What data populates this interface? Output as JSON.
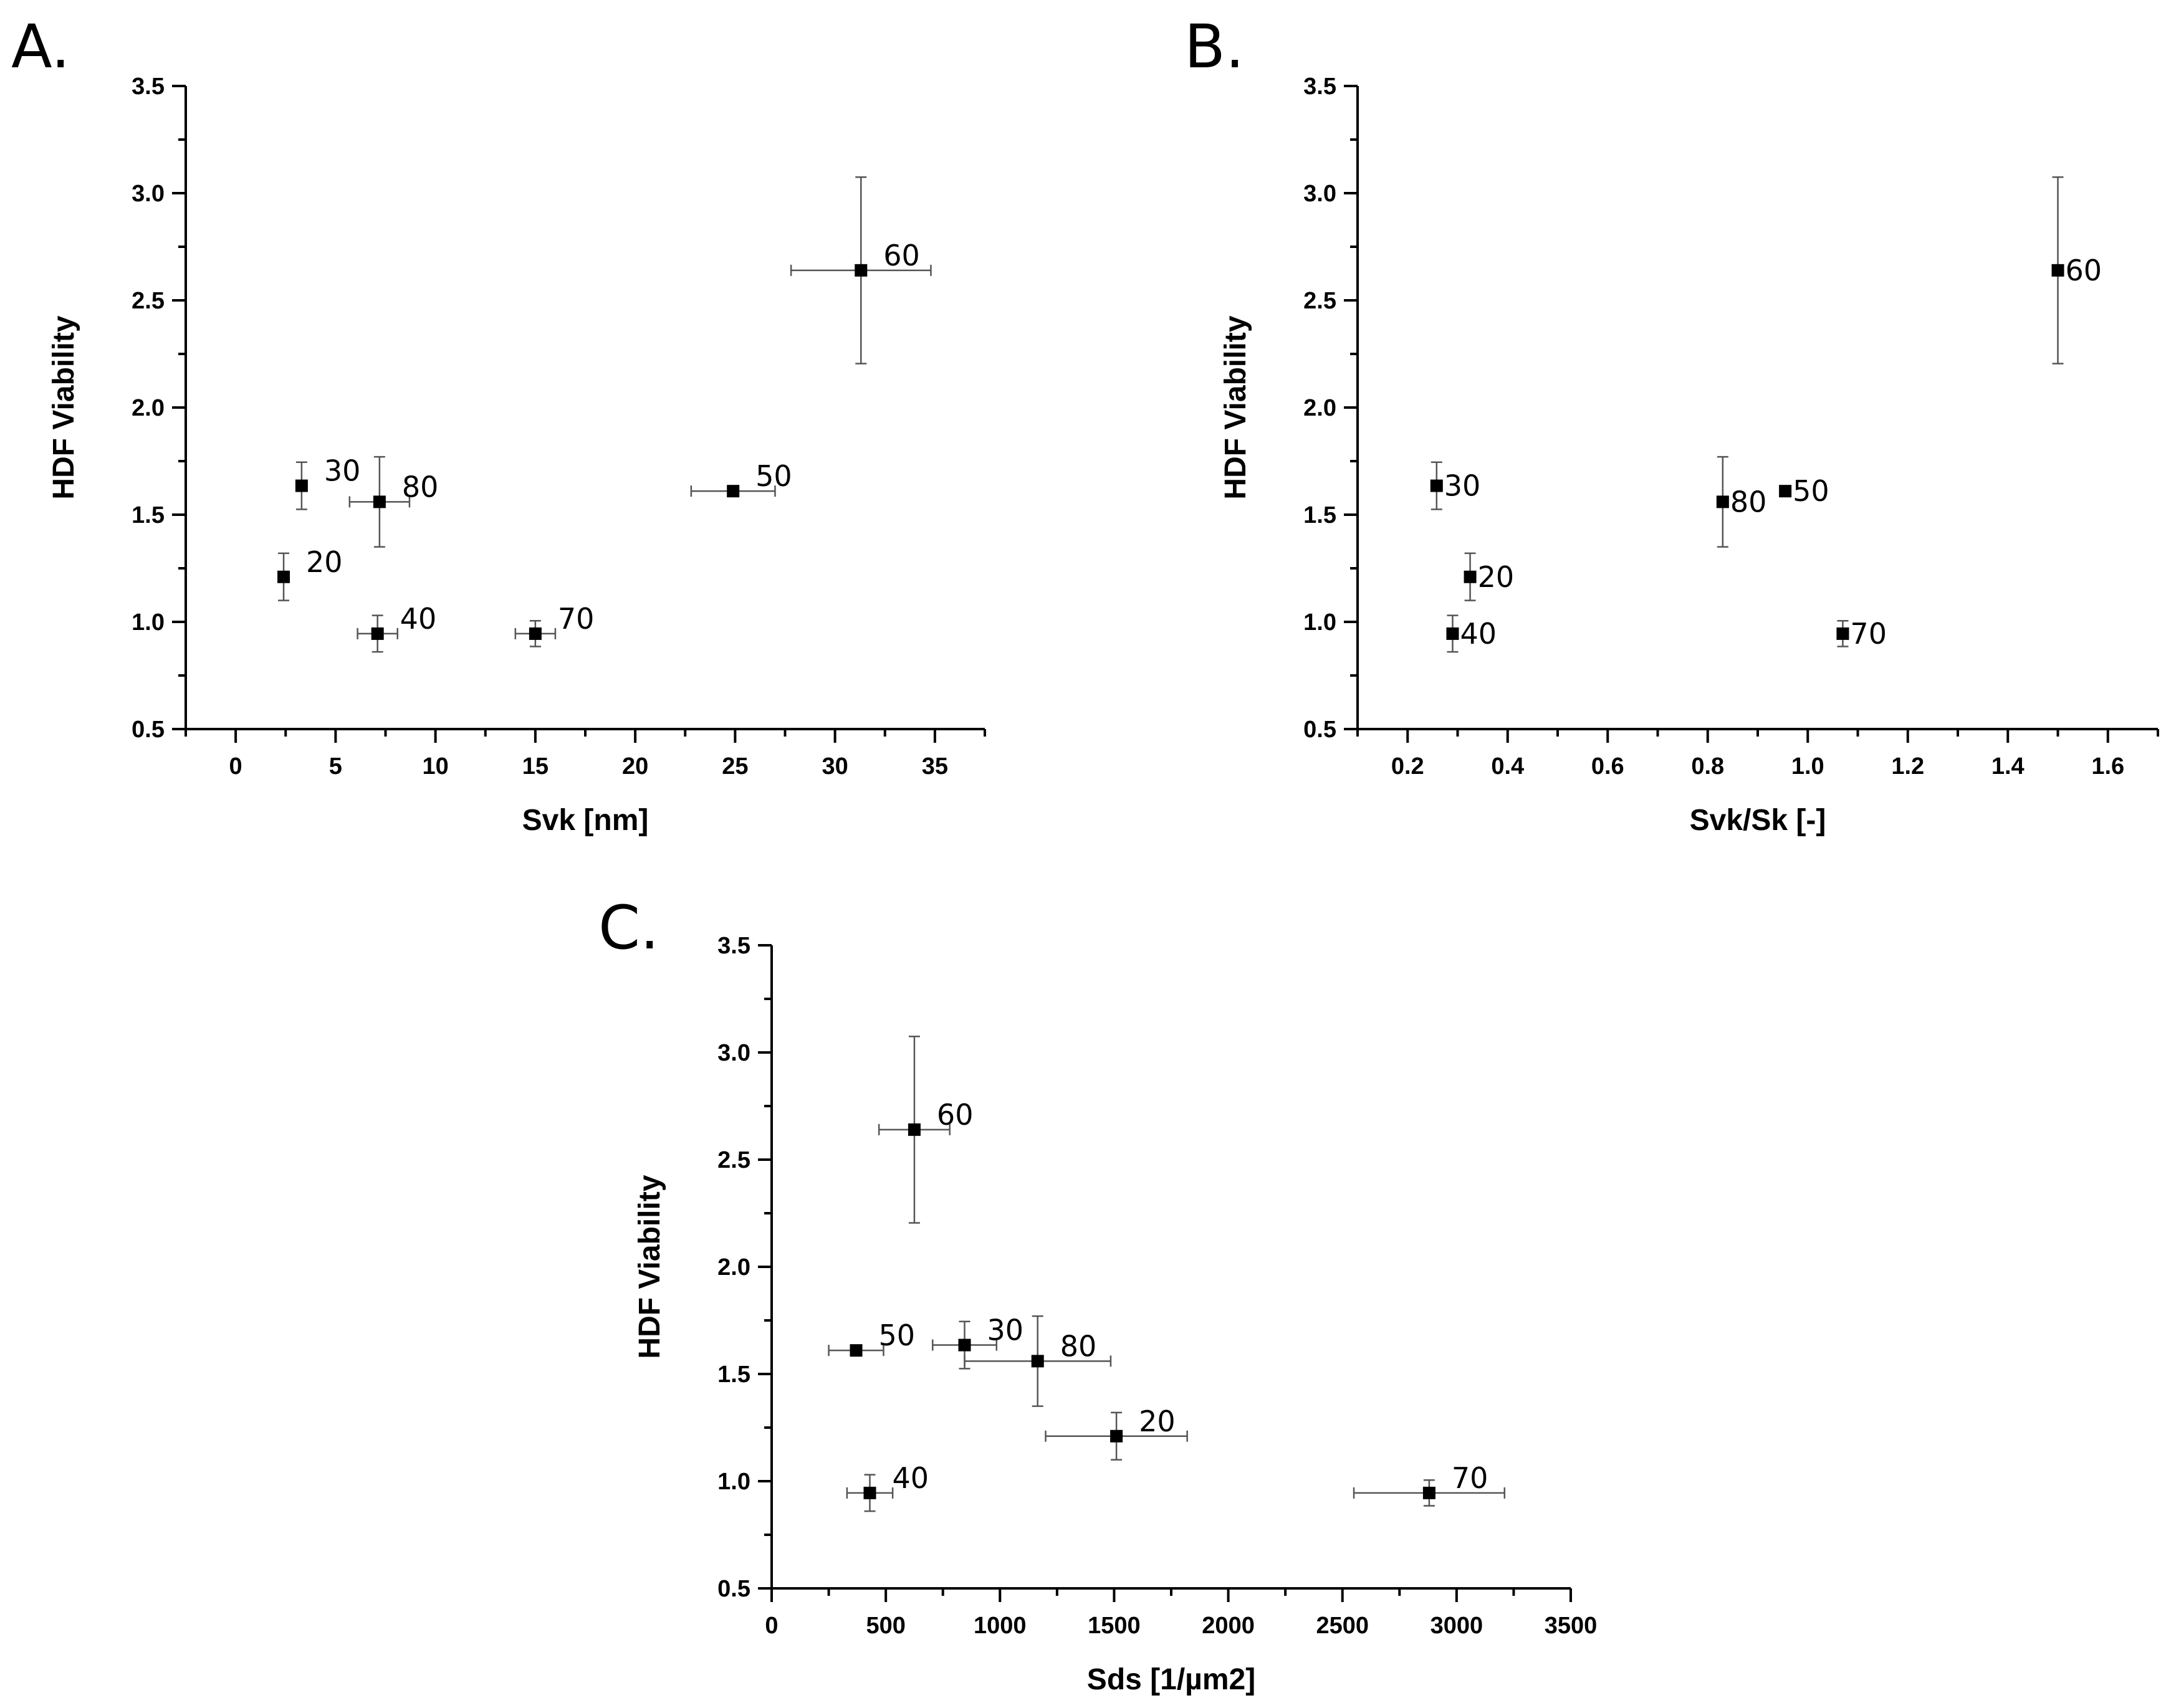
{
  "chart_data": [
    {
      "panel": "A.",
      "type": "scatter",
      "xlabel": "Svk [nm]",
      "ylabel": "HDF Viability",
      "xlim": [
        -2.5,
        37.5
      ],
      "ylim": [
        0.5,
        3.5
      ],
      "x_ticks": [
        0,
        5,
        10,
        15,
        20,
        25,
        30,
        35
      ],
      "x_tick_labels": [
        "0",
        "5",
        "10",
        "15",
        "20",
        "25",
        "30",
        "35"
      ],
      "y_ticks": [
        0.5,
        1.0,
        1.5,
        2.0,
        2.5,
        3.0,
        3.5
      ],
      "y_tick_labels": [
        "0.5",
        "1.0",
        "1.5",
        "2.0",
        "2.5",
        "3.0",
        "3.5"
      ],
      "points": [
        {
          "label": "20",
          "x": 2.4,
          "y": 1.21,
          "xerr": 0,
          "yerr": 0.11
        },
        {
          "label": "30",
          "x": 3.3,
          "y": 1.635,
          "xerr": 0,
          "yerr": 0.11
        },
        {
          "label": "40",
          "x": 7.1,
          "y": 0.945,
          "xerr": 1.0,
          "yerr": 0.085
        },
        {
          "label": "50",
          "x": 24.9,
          "y": 1.61,
          "xerr": 2.1,
          "yerr": 0
        },
        {
          "label": "60",
          "x": 31.3,
          "y": 2.64,
          "xerr": 3.5,
          "yerr": 0.435
        },
        {
          "label": "70",
          "x": 15.0,
          "y": 0.945,
          "xerr": 1.0,
          "yerr": 0.06
        },
        {
          "label": "80",
          "x": 7.2,
          "y": 1.56,
          "xerr": 1.5,
          "yerr": 0.21
        }
      ]
    },
    {
      "panel": "B.",
      "type": "scatter",
      "xlabel": "Svk/Sk [-]",
      "ylabel": "HDF Viability",
      "xlim": [
        0.1,
        1.7
      ],
      "ylim": [
        0.5,
        3.5
      ],
      "x_ticks": [
        0.2,
        0.4,
        0.6,
        0.8,
        1.0,
        1.2,
        1.4,
        1.6
      ],
      "x_tick_labels": [
        "0.2",
        "0.4",
        "0.6",
        "0.8",
        "1.0",
        "1.2",
        "1.4",
        "1.6"
      ],
      "y_ticks": [
        0.5,
        1.0,
        1.5,
        2.0,
        2.5,
        3.0,
        3.5
      ],
      "y_tick_labels": [
        "0.5",
        "1.0",
        "1.5",
        "2.0",
        "2.5",
        "3.0",
        "3.5"
      ],
      "points": [
        {
          "label": "20",
          "x": 0.325,
          "y": 1.21,
          "xerr": 0,
          "yerr": 0.11
        },
        {
          "label": "30",
          "x": 0.258,
          "y": 1.635,
          "xerr": 0,
          "yerr": 0.11
        },
        {
          "label": "40",
          "x": 0.29,
          "y": 0.945,
          "xerr": 0,
          "yerr": 0.085
        },
        {
          "label": "50",
          "x": 0.955,
          "y": 1.61,
          "xerr": 0,
          "yerr": 0
        },
        {
          "label": "60",
          "x": 1.5,
          "y": 2.64,
          "xerr": 0,
          "yerr": 0.435
        },
        {
          "label": "70",
          "x": 1.07,
          "y": 0.945,
          "xerr": 0,
          "yerr": 0.06
        },
        {
          "label": "80",
          "x": 0.83,
          "y": 1.56,
          "xerr": 0,
          "yerr": 0.21
        }
      ]
    },
    {
      "panel": "C.",
      "type": "scatter",
      "xlabel": "Sds [1/µm2]",
      "ylabel": "HDF Viability",
      "xlim": [
        0,
        3500
      ],
      "ylim": [
        0.5,
        3.5
      ],
      "x_ticks": [
        0,
        500,
        1000,
        1500,
        2000,
        2500,
        3000,
        3500
      ],
      "x_tick_labels": [
        "0",
        "500",
        "1000",
        "1500",
        "2000",
        "2500",
        "3000",
        "3500"
      ],
      "y_ticks": [
        0.5,
        1.0,
        1.5,
        2.0,
        2.5,
        3.0,
        3.5
      ],
      "y_tick_labels": [
        "0.5",
        "1.0",
        "1.5",
        "2.0",
        "2.5",
        "3.0",
        "3.5"
      ],
      "points": [
        {
          "label": "20",
          "x": 1510,
          "y": 1.21,
          "xerr": 310,
          "yerr": 0.11
        },
        {
          "label": "30",
          "x": 845,
          "y": 1.635,
          "xerr": 140,
          "yerr": 0.11
        },
        {
          "label": "40",
          "x": 430,
          "y": 0.945,
          "xerr": 100,
          "yerr": 0.085
        },
        {
          "label": "50",
          "x": 370,
          "y": 1.61,
          "xerr": 120,
          "yerr": 0
        },
        {
          "label": "60",
          "x": 625,
          "y": 2.64,
          "xerr": 155,
          "yerr": 0.435
        },
        {
          "label": "70",
          "x": 2880,
          "y": 0.945,
          "xerr": 330,
          "yerr": 0.06
        },
        {
          "label": "80",
          "x": 1165,
          "y": 1.56,
          "xerr": 320,
          "yerr": 0.21
        }
      ]
    }
  ]
}
